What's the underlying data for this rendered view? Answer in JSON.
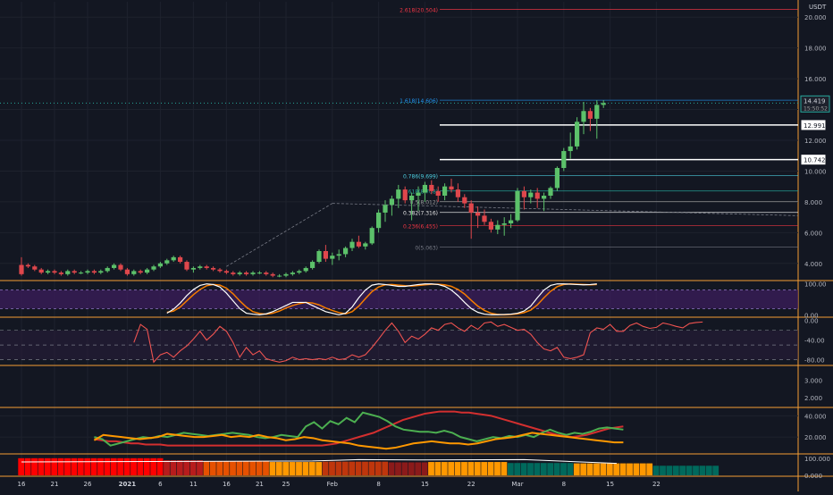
{
  "chart_data": {
    "type": "candlestick",
    "currency": "USDT",
    "colors": {
      "up": "#5cc16a",
      "down": "#e0474c",
      "background": "#131722",
      "separator": "#f59d34",
      "grid": "#1e222d"
    },
    "x_labels": [
      {
        "label": "16",
        "bar": 0
      },
      {
        "label": "21",
        "bar": 5
      },
      {
        "label": "26",
        "bar": 10
      },
      {
        "label": "2021",
        "bar": 16
      },
      {
        "label": "6",
        "bar": 21
      },
      {
        "label": "11",
        "bar": 26
      },
      {
        "label": "16",
        "bar": 31
      },
      {
        "label": "21",
        "bar": 36
      },
      {
        "label": "25",
        "bar": 40
      },
      {
        "label": "Feb",
        "bar": 47
      },
      {
        "label": "8",
        "bar": 54
      },
      {
        "label": "15",
        "bar": 61
      },
      {
        "label": "22",
        "bar": 68
      },
      {
        "label": "Mar",
        "bar": 75
      },
      {
        "label": "8",
        "bar": 82
      },
      {
        "label": "15",
        "bar": 89
      },
      {
        "label": "22",
        "bar": 96
      }
    ],
    "price_panel": {
      "ylim": [
        3.0,
        21.0
      ],
      "ticks": [
        20.0,
        18.0,
        16.0,
        14.0,
        12.0,
        10.0,
        8.0,
        6.0,
        4.0
      ],
      "tick_labels": [
        "20.000",
        "18.000",
        "16.000",
        "14.000",
        "12.000",
        "10.000",
        "8.000",
        "6.000",
        "4.000"
      ],
      "ohlc": [
        [
          3.9,
          4.4,
          3.2,
          3.3
        ],
        [
          3.9,
          4.0,
          3.7,
          3.8
        ],
        [
          3.8,
          3.9,
          3.5,
          3.6
        ],
        [
          3.6,
          3.7,
          3.3,
          3.4
        ],
        [
          3.4,
          3.6,
          3.3,
          3.5
        ],
        [
          3.5,
          3.6,
          3.3,
          3.4
        ],
        [
          3.4,
          3.5,
          3.2,
          3.3
        ],
        [
          3.3,
          3.6,
          3.2,
          3.5
        ],
        [
          3.5,
          3.6,
          3.3,
          3.4
        ],
        [
          3.4,
          3.5,
          3.3,
          3.4
        ],
        [
          3.4,
          3.6,
          3.3,
          3.5
        ],
        [
          3.5,
          3.6,
          3.3,
          3.4
        ],
        [
          3.4,
          3.6,
          3.3,
          3.5
        ],
        [
          3.5,
          3.8,
          3.4,
          3.7
        ],
        [
          3.7,
          4.0,
          3.6,
          3.9
        ],
        [
          3.9,
          4.0,
          3.5,
          3.6
        ],
        [
          3.6,
          3.7,
          3.2,
          3.3
        ],
        [
          3.3,
          3.6,
          3.2,
          3.5
        ],
        [
          3.5,
          3.6,
          3.3,
          3.4
        ],
        [
          3.4,
          3.7,
          3.3,
          3.6
        ],
        [
          3.6,
          3.9,
          3.5,
          3.8
        ],
        [
          3.8,
          4.1,
          3.7,
          4.0
        ],
        [
          4.0,
          4.3,
          3.9,
          4.2
        ],
        [
          4.2,
          4.5,
          4.1,
          4.4
        ],
        [
          4.4,
          4.5,
          4.0,
          4.1
        ],
        [
          4.1,
          4.2,
          3.5,
          3.6
        ],
        [
          3.6,
          3.8,
          3.4,
          3.7
        ],
        [
          3.7,
          3.9,
          3.6,
          3.8
        ],
        [
          3.8,
          3.9,
          3.6,
          3.7
        ],
        [
          3.7,
          3.8,
          3.5,
          3.6
        ],
        [
          3.6,
          3.7,
          3.4,
          3.5
        ],
        [
          3.5,
          3.6,
          3.3,
          3.4
        ],
        [
          3.4,
          3.5,
          3.2,
          3.3
        ],
        [
          3.3,
          3.5,
          3.2,
          3.4
        ],
        [
          3.4,
          3.5,
          3.2,
          3.3
        ],
        [
          3.3,
          3.5,
          3.2,
          3.4
        ],
        [
          3.4,
          3.5,
          3.3,
          3.4
        ],
        [
          3.4,
          3.5,
          3.2,
          3.3
        ],
        [
          3.3,
          3.4,
          3.1,
          3.2
        ],
        [
          3.2,
          3.3,
          3.1,
          3.2
        ],
        [
          3.2,
          3.4,
          3.1,
          3.3
        ],
        [
          3.3,
          3.5,
          3.2,
          3.4
        ],
        [
          3.4,
          3.6,
          3.3,
          3.5
        ],
        [
          3.5,
          3.8,
          3.4,
          3.7
        ],
        [
          3.7,
          4.2,
          3.6,
          4.1
        ],
        [
          4.1,
          4.9,
          4.0,
          4.8
        ],
        [
          4.8,
          5.2,
          4.1,
          4.3
        ],
        [
          4.3,
          4.7,
          3.9,
          4.5
        ],
        [
          4.5,
          4.9,
          4.2,
          4.6
        ],
        [
          4.6,
          5.1,
          4.4,
          5.0
        ],
        [
          5.0,
          5.6,
          4.8,
          5.4
        ],
        [
          5.4,
          5.8,
          5.0,
          5.1
        ],
        [
          5.1,
          5.4,
          4.9,
          5.3
        ],
        [
          5.3,
          6.4,
          5.2,
          6.3
        ],
        [
          6.3,
          7.5,
          6.0,
          7.3
        ],
        [
          7.3,
          8.1,
          6.7,
          7.8
        ],
        [
          7.8,
          8.4,
          7.1,
          8.2
        ],
        [
          8.2,
          9.1,
          7.6,
          8.8
        ],
        [
          8.8,
          9.0,
          7.9,
          8.1
        ],
        [
          8.1,
          8.6,
          6.8,
          8.4
        ],
        [
          8.4,
          9.0,
          7.4,
          8.6
        ],
        [
          8.6,
          9.3,
          8.0,
          9.1
        ],
        [
          9.1,
          9.4,
          8.5,
          8.7
        ],
        [
          8.7,
          9.0,
          8.0,
          8.4
        ],
        [
          8.4,
          9.2,
          8.1,
          9.0
        ],
        [
          9.0,
          9.5,
          8.6,
          8.8
        ],
        [
          8.8,
          9.2,
          8.0,
          8.3
        ],
        [
          8.3,
          8.5,
          7.6,
          7.9
        ],
        [
          7.9,
          8.1,
          5.6,
          7.3
        ],
        [
          7.3,
          7.7,
          6.3,
          7.1
        ],
        [
          7.1,
          7.5,
          6.5,
          6.7
        ],
        [
          6.7,
          6.9,
          6.0,
          6.2
        ],
        [
          6.2,
          6.8,
          5.9,
          6.5
        ],
        [
          6.5,
          7.0,
          5.8,
          6.6
        ],
        [
          6.6,
          7.2,
          6.3,
          6.8
        ],
        [
          6.8,
          8.9,
          6.7,
          8.7
        ],
        [
          8.7,
          9.0,
          7.5,
          8.3
        ],
        [
          8.3,
          8.8,
          7.9,
          8.6
        ],
        [
          8.6,
          8.9,
          7.6,
          8.2
        ],
        [
          8.2,
          8.6,
          7.4,
          8.4
        ],
        [
          8.4,
          9.0,
          8.2,
          8.9
        ],
        [
          8.9,
          10.3,
          8.7,
          10.2
        ],
        [
          10.2,
          11.5,
          10.0,
          11.3
        ],
        [
          11.3,
          12.5,
          10.8,
          11.6
        ],
        [
          11.6,
          13.5,
          11.4,
          13.2
        ],
        [
          13.2,
          14.5,
          12.4,
          13.9
        ],
        [
          13.9,
          14.1,
          12.6,
          13.4
        ],
        [
          13.4,
          14.6,
          12.1,
          14.3
        ],
        [
          14.3,
          14.6,
          14.1,
          14.42
        ]
      ],
      "horizontal_lines": [
        {
          "label": "12.991",
          "value": 12.991,
          "color": "#ffffff"
        },
        {
          "label": "10.742",
          "value": 10.742,
          "color": "#ffffff"
        }
      ],
      "current_price": {
        "label": "14.419",
        "countdown": "15:50:52",
        "value": 14.419,
        "color": "#26a69a"
      },
      "fibonacci": [
        {
          "label": "2.618(20.504)",
          "value": 20.504,
          "color": "#f23645"
        },
        {
          "label": "1.618(14.606)",
          "value": 14.606,
          "color": "#2196f3"
        },
        {
          "label": "0.786(9.699)",
          "value": 9.699,
          "color": "#4dd0e1"
        },
        {
          "label": "0.618(8.708)",
          "value": 8.708,
          "color": "#26a69a"
        },
        {
          "label": "0.5(8.012)",
          "value": 8.012,
          "color": "#9e9e9e"
        },
        {
          "label": "0.382(7.316)",
          "value": 7.316,
          "color": "#e8e8e8"
        },
        {
          "label": "0.236(6.455)",
          "value": 6.455,
          "color": "#f23645"
        },
        {
          "label": "0(5.063)",
          "value": 5.063,
          "color": "#787b86"
        }
      ]
    },
    "stoch_rsi_panel": {
      "ylim": [
        -5,
        105
      ],
      "ticks": [
        100,
        0
      ],
      "tick_labels": [
        "100.00",
        "0.00"
      ],
      "start_bar": 22,
      "k_color": "#ffffff",
      "d_color": "#f57c00",
      "k": [
        5,
        18,
        38,
        62,
        82,
        95,
        100,
        98,
        90,
        70,
        45,
        20,
        5,
        2,
        0,
        3,
        10,
        20,
        30,
        40,
        40,
        40,
        30,
        20,
        10,
        5,
        0,
        5,
        25,
        55,
        80,
        96,
        100,
        98,
        95,
        92,
        92,
        95,
        98,
        100,
        100,
        98,
        92,
        80,
        62,
        40,
        20,
        8,
        2,
        0,
        0,
        1,
        2,
        5,
        12,
        28,
        55,
        80,
        95,
        100,
        100,
        99,
        98,
        97,
        98,
        100
      ],
      "d": [
        8,
        12,
        25,
        45,
        65,
        82,
        94,
        98,
        96,
        86,
        68,
        45,
        25,
        10,
        4,
        2,
        5,
        12,
        22,
        30,
        36,
        40,
        38,
        32,
        22,
        14,
        7,
        3,
        10,
        28,
        52,
        75,
        90,
        97,
        98,
        96,
        94,
        93,
        95,
        97,
        99,
        99,
        97,
        92,
        82,
        67,
        47,
        28,
        14,
        5,
        1,
        0,
        1,
        3,
        7,
        15,
        32,
        55,
        76,
        91,
        98,
        100,
        99,
        98,
        97,
        98
      ]
    },
    "williams_r_panel": {
      "ylim": [
        -90,
        5
      ],
      "ticks": [
        0,
        -40,
        -80
      ],
      "tick_labels": [
        "0.00",
        "-40.00",
        "-80.00"
      ],
      "start_bar": 17,
      "color": "#ef5350",
      "values": [
        -45,
        -8,
        -18,
        -85,
        -70,
        -65,
        -75,
        -62,
        -52,
        -38,
        -22,
        -40,
        -28,
        -12,
        -22,
        -45,
        -75,
        -55,
        -70,
        -62,
        -78,
        -82,
        -85,
        -82,
        -75,
        -80,
        -78,
        -80,
        -78,
        -80,
        -75,
        -80,
        -78,
        -70,
        -75,
        -70,
        -55,
        -38,
        -20,
        -5,
        -22,
        -45,
        -32,
        -38,
        -28,
        -15,
        -20,
        -8,
        -5,
        -15,
        -22,
        -10,
        -18,
        -5,
        -3,
        -12,
        -8,
        -14,
        -20,
        -18,
        -28,
        -45,
        -58,
        -62,
        -55,
        -75,
        -78,
        -75,
        -70,
        -25,
        -15,
        -18,
        -8,
        -22,
        -22,
        -10,
        -5,
        -12,
        -16,
        -14,
        -5,
        -8,
        -12,
        -15,
        -6,
        -4,
        -3
      ]
    },
    "empty_panel": {
      "ylim": [
        1.5,
        3.8
      ],
      "ticks": [
        3.0,
        2.0
      ],
      "tick_labels": [
        "3.000",
        "2.000"
      ]
    },
    "dmi_panel": {
      "ylim": [
        5,
        47
      ],
      "ticks": [
        40,
        20
      ],
      "tick_labels": [
        "40.000",
        "20.000"
      ],
      "start_bar": 11,
      "series": [
        {
          "color": "#d32f2f",
          "values": [
            18,
            17,
            16,
            16,
            15,
            14,
            14,
            13,
            13,
            13,
            12,
            12,
            12,
            12,
            12,
            12,
            12,
            12,
            12,
            12,
            12,
            12,
            12,
            12,
            12,
            12,
            12,
            12,
            12,
            12,
            12,
            12,
            13,
            14,
            16,
            18,
            20,
            22,
            24,
            27,
            30,
            33,
            36,
            38,
            40,
            42,
            43,
            44,
            44,
            44,
            43,
            43,
            42,
            41,
            40,
            38,
            36,
            34,
            32,
            30,
            28,
            26,
            24,
            22,
            21,
            20,
            21,
            22,
            24,
            26,
            28,
            29,
            30
          ]
        },
        {
          "color": "#4caf50",
          "values": [
            20,
            18,
            12,
            14,
            16,
            18,
            20,
            19,
            21,
            20,
            22,
            24,
            23,
            22,
            21,
            22,
            23,
            24,
            23,
            22,
            20,
            19,
            20,
            22,
            21,
            20,
            30,
            34,
            28,
            35,
            32,
            38,
            34,
            43,
            41,
            39,
            35,
            30,
            27,
            26,
            25,
            25,
            24,
            26,
            24,
            20,
            18,
            16,
            18,
            20,
            19,
            21,
            20,
            22,
            20,
            24,
            27,
            24,
            22,
            24,
            23,
            25,
            28,
            29,
            28,
            27
          ]
        },
        {
          "color": "#ff9800",
          "values": [
            17,
            22,
            21,
            20,
            19,
            18,
            19,
            20,
            23,
            22,
            21,
            20,
            20,
            21,
            22,
            20,
            21,
            20,
            22,
            20,
            19,
            17,
            18,
            20,
            19,
            17,
            16,
            15,
            14,
            12,
            11,
            10,
            9,
            10,
            12,
            14,
            15,
            16,
            15,
            14,
            14,
            13,
            14,
            16,
            18,
            19,
            20,
            22,
            24,
            23,
            22,
            21,
            20,
            19,
            18,
            17,
            16,
            15,
            15
          ]
        }
      ]
    },
    "volume_panel": {
      "ylim": [
        0,
        120
      ],
      "ticks": [
        100,
        0
      ],
      "tick_labels": [
        "100.000",
        "0.000"
      ],
      "ma_color": "#ffffff",
      "ma_points": [
        [
          0,
          78
        ],
        [
          44,
          84
        ],
        [
          51,
          92
        ],
        [
          60,
          90
        ],
        [
          76,
          92
        ],
        [
          90,
          70
        ]
      ],
      "bars": [
        {
          "from": 0,
          "to": 22,
          "value": 100,
          "color": "#ff0000"
        },
        {
          "from": 22,
          "to": 28,
          "value": 88,
          "color": "#b71c1c"
        },
        {
          "from": 28,
          "to": 38,
          "value": 82,
          "color": "#e65100"
        },
        {
          "from": 38,
          "to": 46,
          "value": 78,
          "color": "#ff9800"
        },
        {
          "from": 46,
          "to": 56,
          "value": 80,
          "color": "#bf360c"
        },
        {
          "from": 56,
          "to": 62,
          "value": 76,
          "color": "#8b1a1a"
        },
        {
          "from": 62,
          "to": 74,
          "value": 78,
          "color": "#ff9800"
        },
        {
          "from": 74,
          "to": 84,
          "value": 72,
          "color": "#00695c"
        },
        {
          "from": 84,
          "to": 96,
          "value": 70,
          "color": "#ff9800"
        },
        {
          "from": 96,
          "to": 106,
          "value": 56,
          "color": "#00695c"
        }
      ]
    }
  }
}
